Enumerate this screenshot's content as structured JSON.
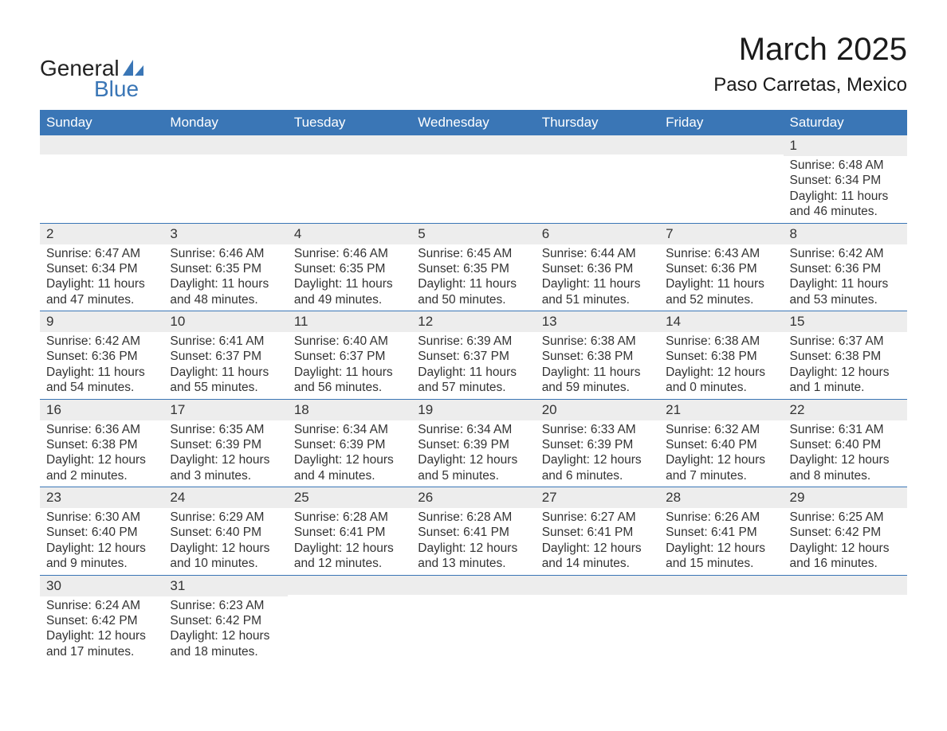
{
  "logo": {
    "line1": "General",
    "line2": "Blue"
  },
  "title": "March 2025",
  "location": "Paso Carretas, Mexico",
  "colors": {
    "header_bg": "#3a76b6",
    "header_text": "#ffffff",
    "daynum_bg": "#ededed",
    "border": "#3a76b6",
    "text": "#333333",
    "logo_blue": "#3a76b6"
  },
  "daysOfWeek": [
    "Sunday",
    "Monday",
    "Tuesday",
    "Wednesday",
    "Thursday",
    "Friday",
    "Saturday"
  ],
  "weeks": [
    [
      null,
      null,
      null,
      null,
      null,
      null,
      {
        "n": "1",
        "sunrise": "Sunrise: 6:48 AM",
        "sunset": "Sunset: 6:34 PM",
        "daylight": "Daylight: 11 hours and 46 minutes."
      }
    ],
    [
      {
        "n": "2",
        "sunrise": "Sunrise: 6:47 AM",
        "sunset": "Sunset: 6:34 PM",
        "daylight": "Daylight: 11 hours and 47 minutes."
      },
      {
        "n": "3",
        "sunrise": "Sunrise: 6:46 AM",
        "sunset": "Sunset: 6:35 PM",
        "daylight": "Daylight: 11 hours and 48 minutes."
      },
      {
        "n": "4",
        "sunrise": "Sunrise: 6:46 AM",
        "sunset": "Sunset: 6:35 PM",
        "daylight": "Daylight: 11 hours and 49 minutes."
      },
      {
        "n": "5",
        "sunrise": "Sunrise: 6:45 AM",
        "sunset": "Sunset: 6:35 PM",
        "daylight": "Daylight: 11 hours and 50 minutes."
      },
      {
        "n": "6",
        "sunrise": "Sunrise: 6:44 AM",
        "sunset": "Sunset: 6:36 PM",
        "daylight": "Daylight: 11 hours and 51 minutes."
      },
      {
        "n": "7",
        "sunrise": "Sunrise: 6:43 AM",
        "sunset": "Sunset: 6:36 PM",
        "daylight": "Daylight: 11 hours and 52 minutes."
      },
      {
        "n": "8",
        "sunrise": "Sunrise: 6:42 AM",
        "sunset": "Sunset: 6:36 PM",
        "daylight": "Daylight: 11 hours and 53 minutes."
      }
    ],
    [
      {
        "n": "9",
        "sunrise": "Sunrise: 6:42 AM",
        "sunset": "Sunset: 6:36 PM",
        "daylight": "Daylight: 11 hours and 54 minutes."
      },
      {
        "n": "10",
        "sunrise": "Sunrise: 6:41 AM",
        "sunset": "Sunset: 6:37 PM",
        "daylight": "Daylight: 11 hours and 55 minutes."
      },
      {
        "n": "11",
        "sunrise": "Sunrise: 6:40 AM",
        "sunset": "Sunset: 6:37 PM",
        "daylight": "Daylight: 11 hours and 56 minutes."
      },
      {
        "n": "12",
        "sunrise": "Sunrise: 6:39 AM",
        "sunset": "Sunset: 6:37 PM",
        "daylight": "Daylight: 11 hours and 57 minutes."
      },
      {
        "n": "13",
        "sunrise": "Sunrise: 6:38 AM",
        "sunset": "Sunset: 6:38 PM",
        "daylight": "Daylight: 11 hours and 59 minutes."
      },
      {
        "n": "14",
        "sunrise": "Sunrise: 6:38 AM",
        "sunset": "Sunset: 6:38 PM",
        "daylight": "Daylight: 12 hours and 0 minutes."
      },
      {
        "n": "15",
        "sunrise": "Sunrise: 6:37 AM",
        "sunset": "Sunset: 6:38 PM",
        "daylight": "Daylight: 12 hours and 1 minute."
      }
    ],
    [
      {
        "n": "16",
        "sunrise": "Sunrise: 6:36 AM",
        "sunset": "Sunset: 6:38 PM",
        "daylight": "Daylight: 12 hours and 2 minutes."
      },
      {
        "n": "17",
        "sunrise": "Sunrise: 6:35 AM",
        "sunset": "Sunset: 6:39 PM",
        "daylight": "Daylight: 12 hours and 3 minutes."
      },
      {
        "n": "18",
        "sunrise": "Sunrise: 6:34 AM",
        "sunset": "Sunset: 6:39 PM",
        "daylight": "Daylight: 12 hours and 4 minutes."
      },
      {
        "n": "19",
        "sunrise": "Sunrise: 6:34 AM",
        "sunset": "Sunset: 6:39 PM",
        "daylight": "Daylight: 12 hours and 5 minutes."
      },
      {
        "n": "20",
        "sunrise": "Sunrise: 6:33 AM",
        "sunset": "Sunset: 6:39 PM",
        "daylight": "Daylight: 12 hours and 6 minutes."
      },
      {
        "n": "21",
        "sunrise": "Sunrise: 6:32 AM",
        "sunset": "Sunset: 6:40 PM",
        "daylight": "Daylight: 12 hours and 7 minutes."
      },
      {
        "n": "22",
        "sunrise": "Sunrise: 6:31 AM",
        "sunset": "Sunset: 6:40 PM",
        "daylight": "Daylight: 12 hours and 8 minutes."
      }
    ],
    [
      {
        "n": "23",
        "sunrise": "Sunrise: 6:30 AM",
        "sunset": "Sunset: 6:40 PM",
        "daylight": "Daylight: 12 hours and 9 minutes."
      },
      {
        "n": "24",
        "sunrise": "Sunrise: 6:29 AM",
        "sunset": "Sunset: 6:40 PM",
        "daylight": "Daylight: 12 hours and 10 minutes."
      },
      {
        "n": "25",
        "sunrise": "Sunrise: 6:28 AM",
        "sunset": "Sunset: 6:41 PM",
        "daylight": "Daylight: 12 hours and 12 minutes."
      },
      {
        "n": "26",
        "sunrise": "Sunrise: 6:28 AM",
        "sunset": "Sunset: 6:41 PM",
        "daylight": "Daylight: 12 hours and 13 minutes."
      },
      {
        "n": "27",
        "sunrise": "Sunrise: 6:27 AM",
        "sunset": "Sunset: 6:41 PM",
        "daylight": "Daylight: 12 hours and 14 minutes."
      },
      {
        "n": "28",
        "sunrise": "Sunrise: 6:26 AM",
        "sunset": "Sunset: 6:41 PM",
        "daylight": "Daylight: 12 hours and 15 minutes."
      },
      {
        "n": "29",
        "sunrise": "Sunrise: 6:25 AM",
        "sunset": "Sunset: 6:42 PM",
        "daylight": "Daylight: 12 hours and 16 minutes."
      }
    ],
    [
      {
        "n": "30",
        "sunrise": "Sunrise: 6:24 AM",
        "sunset": "Sunset: 6:42 PM",
        "daylight": "Daylight: 12 hours and 17 minutes."
      },
      {
        "n": "31",
        "sunrise": "Sunrise: 6:23 AM",
        "sunset": "Sunset: 6:42 PM",
        "daylight": "Daylight: 12 hours and 18 minutes."
      },
      null,
      null,
      null,
      null,
      null
    ]
  ]
}
